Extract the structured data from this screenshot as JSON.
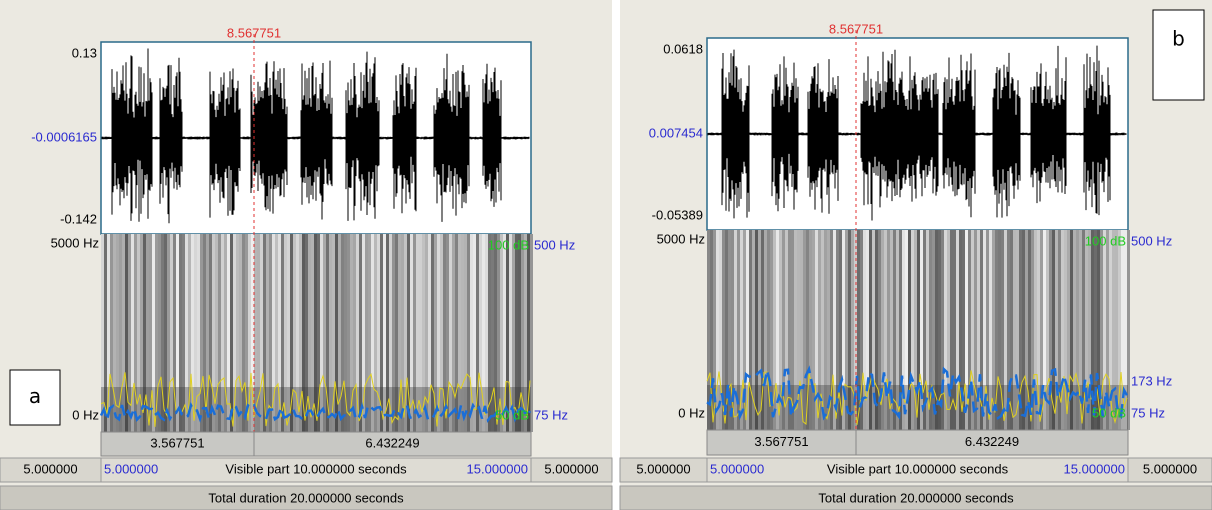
{
  "panels": [
    {
      "label": "a",
      "cursor": "8.567751",
      "wave_max": "0.13",
      "wave_mid": "-0.0006165",
      "wave_min": "-0.142",
      "freq_max": "5000 Hz",
      "freq_min": "0 Hz",
      "db_max": "100 dB",
      "db_min": "50 dB",
      "pitch_max": "500 Hz",
      "pitch_min": "75 Hz",
      "selection": [
        "3.567751",
        "6.432249"
      ],
      "nav": {
        "left_outer": "5.000000",
        "left": "5.000000",
        "visible": "Visible part 10.000000 seconds",
        "right": "15.000000",
        "right_outer": "5.000000"
      },
      "total": "Total duration 20.000000 seconds"
    },
    {
      "label": "b",
      "cursor": "8.567751",
      "wave_max": "0.0618",
      "wave_mid": "0.007454",
      "wave_min": "-0.05389",
      "freq_max": "5000 Hz",
      "freq_min": "0 Hz",
      "db_max": "100 dB",
      "db_min": "50 dB",
      "pitch_max": "500 Hz",
      "pitch_mark": "173 Hz",
      "pitch_min": "75 Hz",
      "selection": [
        "3.567751",
        "6.432249"
      ],
      "nav": {
        "left_outer": "5.000000",
        "left": "5.000000",
        "visible": "Visible part 10.000000 seconds",
        "right": "15.000000",
        "right_outer": "5.000000"
      },
      "total": "Total duration 20.000000 seconds"
    }
  ]
}
